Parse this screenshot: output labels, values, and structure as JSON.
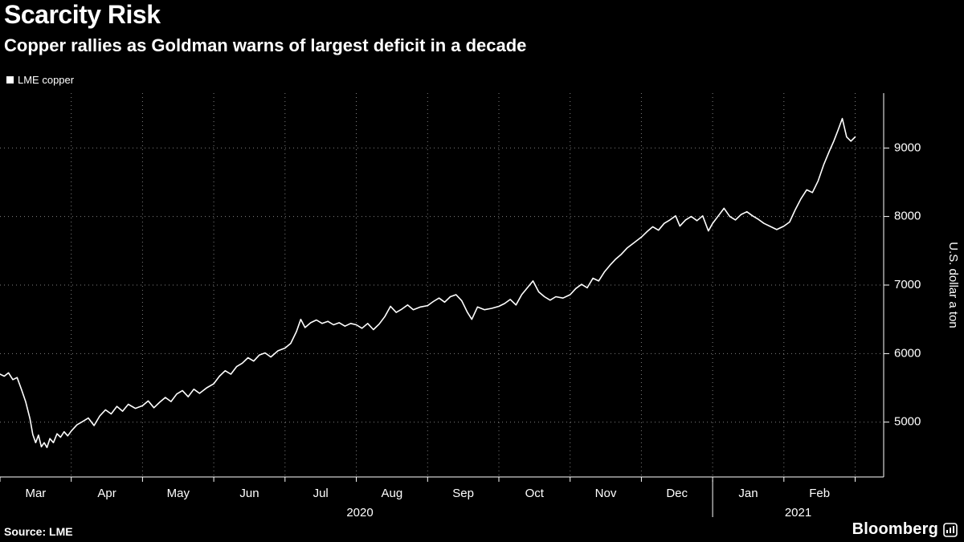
{
  "header": {
    "title": "Scarcity Risk",
    "subtitle": "Copper rallies as Goldman warns of largest deficit in a decade"
  },
  "legend": {
    "label": "LME copper",
    "marker_color": "#ffffff"
  },
  "footer": {
    "source": "Source: LME",
    "brand": "Bloomberg"
  },
  "chart_data": {
    "type": "line",
    "title": "Scarcity Risk",
    "subtitle": "Copper rallies as Goldman warns of largest deficit in a decade",
    "ylabel": "U.S. dollar a ton",
    "xlabel": "",
    "legend_position": "top-left",
    "grid": "dotted",
    "background_color": "#000000",
    "axis_color": "#ffffff",
    "ylim": [
      4200,
      9800
    ],
    "xlim": [
      0,
      12.4
    ],
    "y_ticks": [
      5000,
      6000,
      7000,
      8000,
      9000
    ],
    "x_unit": "months since 2020-03-01",
    "x_axis": {
      "month_labels": [
        "Mar",
        "Apr",
        "May",
        "Jun",
        "Jul",
        "Aug",
        "Sep",
        "Oct",
        "Nov",
        "Dec",
        "Jan",
        "Feb"
      ],
      "year_labels": [
        {
          "label": "2020",
          "m": 5.05
        },
        {
          "label": "2021",
          "m": 11.2
        }
      ],
      "year_divider_m": 10
    },
    "series": [
      {
        "name": "LME copper",
        "color": "#ffffff",
        "points": [
          [
            0.0,
            5700
          ],
          [
            0.06,
            5670
          ],
          [
            0.12,
            5720
          ],
          [
            0.18,
            5620
          ],
          [
            0.24,
            5650
          ],
          [
            0.3,
            5480
          ],
          [
            0.36,
            5300
          ],
          [
            0.42,
            5050
          ],
          [
            0.46,
            4820
          ],
          [
            0.5,
            4700
          ],
          [
            0.54,
            4810
          ],
          [
            0.58,
            4640
          ],
          [
            0.62,
            4700
          ],
          [
            0.66,
            4630
          ],
          [
            0.7,
            4760
          ],
          [
            0.75,
            4700
          ],
          [
            0.8,
            4830
          ],
          [
            0.85,
            4780
          ],
          [
            0.9,
            4860
          ],
          [
            0.95,
            4800
          ],
          [
            1.0,
            4870
          ],
          [
            1.08,
            4960
          ],
          [
            1.16,
            5010
          ],
          [
            1.24,
            5060
          ],
          [
            1.32,
            4950
          ],
          [
            1.4,
            5090
          ],
          [
            1.48,
            5180
          ],
          [
            1.56,
            5120
          ],
          [
            1.64,
            5230
          ],
          [
            1.72,
            5160
          ],
          [
            1.8,
            5260
          ],
          [
            1.9,
            5200
          ],
          [
            2.0,
            5240
          ],
          [
            2.08,
            5310
          ],
          [
            2.16,
            5210
          ],
          [
            2.24,
            5290
          ],
          [
            2.32,
            5360
          ],
          [
            2.4,
            5300
          ],
          [
            2.48,
            5410
          ],
          [
            2.56,
            5460
          ],
          [
            2.64,
            5370
          ],
          [
            2.72,
            5480
          ],
          [
            2.8,
            5420
          ],
          [
            2.9,
            5500
          ],
          [
            3.0,
            5560
          ],
          [
            3.08,
            5670
          ],
          [
            3.16,
            5750
          ],
          [
            3.24,
            5700
          ],
          [
            3.32,
            5810
          ],
          [
            3.4,
            5860
          ],
          [
            3.48,
            5940
          ],
          [
            3.56,
            5890
          ],
          [
            3.64,
            5980
          ],
          [
            3.72,
            6010
          ],
          [
            3.8,
            5950
          ],
          [
            3.9,
            6040
          ],
          [
            4.0,
            6080
          ],
          [
            4.08,
            6150
          ],
          [
            4.16,
            6320
          ],
          [
            4.22,
            6500
          ],
          [
            4.28,
            6380
          ],
          [
            4.36,
            6450
          ],
          [
            4.44,
            6490
          ],
          [
            4.52,
            6440
          ],
          [
            4.6,
            6470
          ],
          [
            4.68,
            6420
          ],
          [
            4.76,
            6450
          ],
          [
            4.84,
            6400
          ],
          [
            4.92,
            6440
          ],
          [
            5.0,
            6420
          ],
          [
            5.08,
            6370
          ],
          [
            5.16,
            6440
          ],
          [
            5.24,
            6350
          ],
          [
            5.32,
            6430
          ],
          [
            5.4,
            6540
          ],
          [
            5.48,
            6690
          ],
          [
            5.56,
            6600
          ],
          [
            5.64,
            6650
          ],
          [
            5.72,
            6710
          ],
          [
            5.8,
            6640
          ],
          [
            5.9,
            6680
          ],
          [
            6.0,
            6700
          ],
          [
            6.08,
            6760
          ],
          [
            6.16,
            6810
          ],
          [
            6.24,
            6750
          ],
          [
            6.32,
            6830
          ],
          [
            6.4,
            6860
          ],
          [
            6.48,
            6770
          ],
          [
            6.56,
            6600
          ],
          [
            6.62,
            6500
          ],
          [
            6.7,
            6680
          ],
          [
            6.8,
            6640
          ],
          [
            6.9,
            6660
          ],
          [
            7.0,
            6690
          ],
          [
            7.08,
            6730
          ],
          [
            7.16,
            6790
          ],
          [
            7.24,
            6710
          ],
          [
            7.32,
            6860
          ],
          [
            7.4,
            6960
          ],
          [
            7.48,
            7060
          ],
          [
            7.56,
            6900
          ],
          [
            7.64,
            6830
          ],
          [
            7.72,
            6780
          ],
          [
            7.8,
            6830
          ],
          [
            7.9,
            6810
          ],
          [
            8.0,
            6860
          ],
          [
            8.08,
            6950
          ],
          [
            8.16,
            7010
          ],
          [
            8.24,
            6960
          ],
          [
            8.32,
            7100
          ],
          [
            8.4,
            7060
          ],
          [
            8.48,
            7190
          ],
          [
            8.56,
            7290
          ],
          [
            8.64,
            7380
          ],
          [
            8.72,
            7450
          ],
          [
            8.8,
            7540
          ],
          [
            8.9,
            7620
          ],
          [
            9.0,
            7700
          ],
          [
            9.08,
            7780
          ],
          [
            9.16,
            7850
          ],
          [
            9.24,
            7800
          ],
          [
            9.32,
            7900
          ],
          [
            9.4,
            7950
          ],
          [
            9.48,
            8010
          ],
          [
            9.54,
            7860
          ],
          [
            9.62,
            7950
          ],
          [
            9.7,
            8000
          ],
          [
            9.78,
            7940
          ],
          [
            9.86,
            8010
          ],
          [
            9.94,
            7790
          ],
          [
            10.0,
            7900
          ],
          [
            10.08,
            8010
          ],
          [
            10.16,
            8120
          ],
          [
            10.24,
            8000
          ],
          [
            10.32,
            7950
          ],
          [
            10.4,
            8030
          ],
          [
            10.48,
            8070
          ],
          [
            10.56,
            8010
          ],
          [
            10.64,
            7960
          ],
          [
            10.72,
            7900
          ],
          [
            10.8,
            7860
          ],
          [
            10.9,
            7810
          ],
          [
            11.0,
            7860
          ],
          [
            11.08,
            7920
          ],
          [
            11.16,
            8100
          ],
          [
            11.24,
            8260
          ],
          [
            11.32,
            8390
          ],
          [
            11.4,
            8350
          ],
          [
            11.48,
            8520
          ],
          [
            11.56,
            8760
          ],
          [
            11.64,
            8960
          ],
          [
            11.7,
            9100
          ],
          [
            11.76,
            9260
          ],
          [
            11.82,
            9430
          ],
          [
            11.88,
            9160
          ],
          [
            11.94,
            9100
          ],
          [
            12.0,
            9160
          ]
        ]
      }
    ]
  }
}
